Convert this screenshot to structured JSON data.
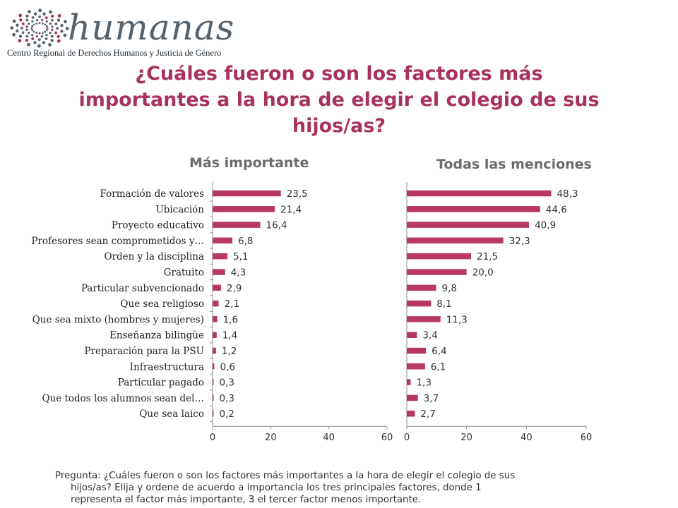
{
  "logo": {
    "wordmark": "humanas",
    "subtitle": "Centro Regional de Derechos Humanos y Justicia de Género",
    "accent_color": "#a8325f",
    "dot_color": "#55616b"
  },
  "title": {
    "line1": "¿Cuáles fueron o son los factores más",
    "line2": "importantes a la hora de elegir el colegio de sus",
    "line3": "hijos/as?"
  },
  "chart_data": [
    {
      "type": "bar",
      "orientation": "horizontal",
      "title": "Más importante",
      "categories": [
        "Formación de valores",
        "Ubicación",
        "Proyecto educativo",
        "Profesores sean comprometidos y…",
        "Orden y la disciplina",
        "Gratuito",
        "Particular subvencionado",
        "Que sea religioso",
        "Que sea mixto (hombres y mujeres)",
        "Enseñanza bilingüe",
        "Preparación para la PSU",
        "Infraestructura",
        "Particular pagado",
        "Que todos los alumnos sean del…",
        "Que sea laico"
      ],
      "values": [
        23.5,
        21.4,
        16.4,
        6.8,
        5.1,
        4.3,
        2.9,
        2.1,
        1.6,
        1.4,
        1.2,
        0.6,
        0.3,
        0.3,
        0.2
      ],
      "value_labels": [
        "23,5",
        "21,4",
        "16,4",
        "6,8",
        "5,1",
        "4,3",
        "2,9",
        "2,1",
        "1,6",
        "1,4",
        "1,2",
        "0,6",
        "0,3",
        "0,3",
        "0,2"
      ],
      "xlim": [
        0,
        60
      ],
      "ticks": [
        "0",
        "20",
        "40",
        "60"
      ],
      "bar_color": "#b8395f",
      "grid": false
    },
    {
      "type": "bar",
      "orientation": "horizontal",
      "title": "Todas las menciones",
      "categories": [
        "Formación de valores",
        "Ubicación",
        "Proyecto educativo",
        "Profesores sean comprometidos y…",
        "Orden y la disciplina",
        "Gratuito",
        "Particular subvencionado",
        "Que sea religioso",
        "Que sea mixto (hombres y mujeres)",
        "Enseñanza bilingüe",
        "Preparación para la PSU",
        "Infraestructura",
        "Particular pagado",
        "Que todos los alumnos sean del…",
        "Que sea laico"
      ],
      "values": [
        48.3,
        44.6,
        40.9,
        32.3,
        21.5,
        20.0,
        9.8,
        8.1,
        11.3,
        3.4,
        6.4,
        6.1,
        1.3,
        3.7,
        2.7
      ],
      "value_labels": [
        "48,3",
        "44,6",
        "40,9",
        "32,3",
        "21,5",
        "20,0",
        "9,8",
        "8,1",
        "11,3",
        "3,4",
        "6,4",
        "6,1",
        "1,3",
        "3,7",
        "2,7"
      ],
      "xlim": [
        0,
        60
      ],
      "ticks": [
        "0",
        "20",
        "40",
        "60"
      ],
      "bar_color": "#b8395f",
      "grid": false
    }
  ],
  "note": {
    "line1": "Pregunta: ¿Cuáles fueron o son los factores más importantes a la hora de elegir el colegio de sus",
    "line2": "hijos/as? Elija y ordene de acuerdo a importancia los tres principales factores, donde 1",
    "line3": "representa el factor más importante, 3  el tercer factor menos importante."
  }
}
